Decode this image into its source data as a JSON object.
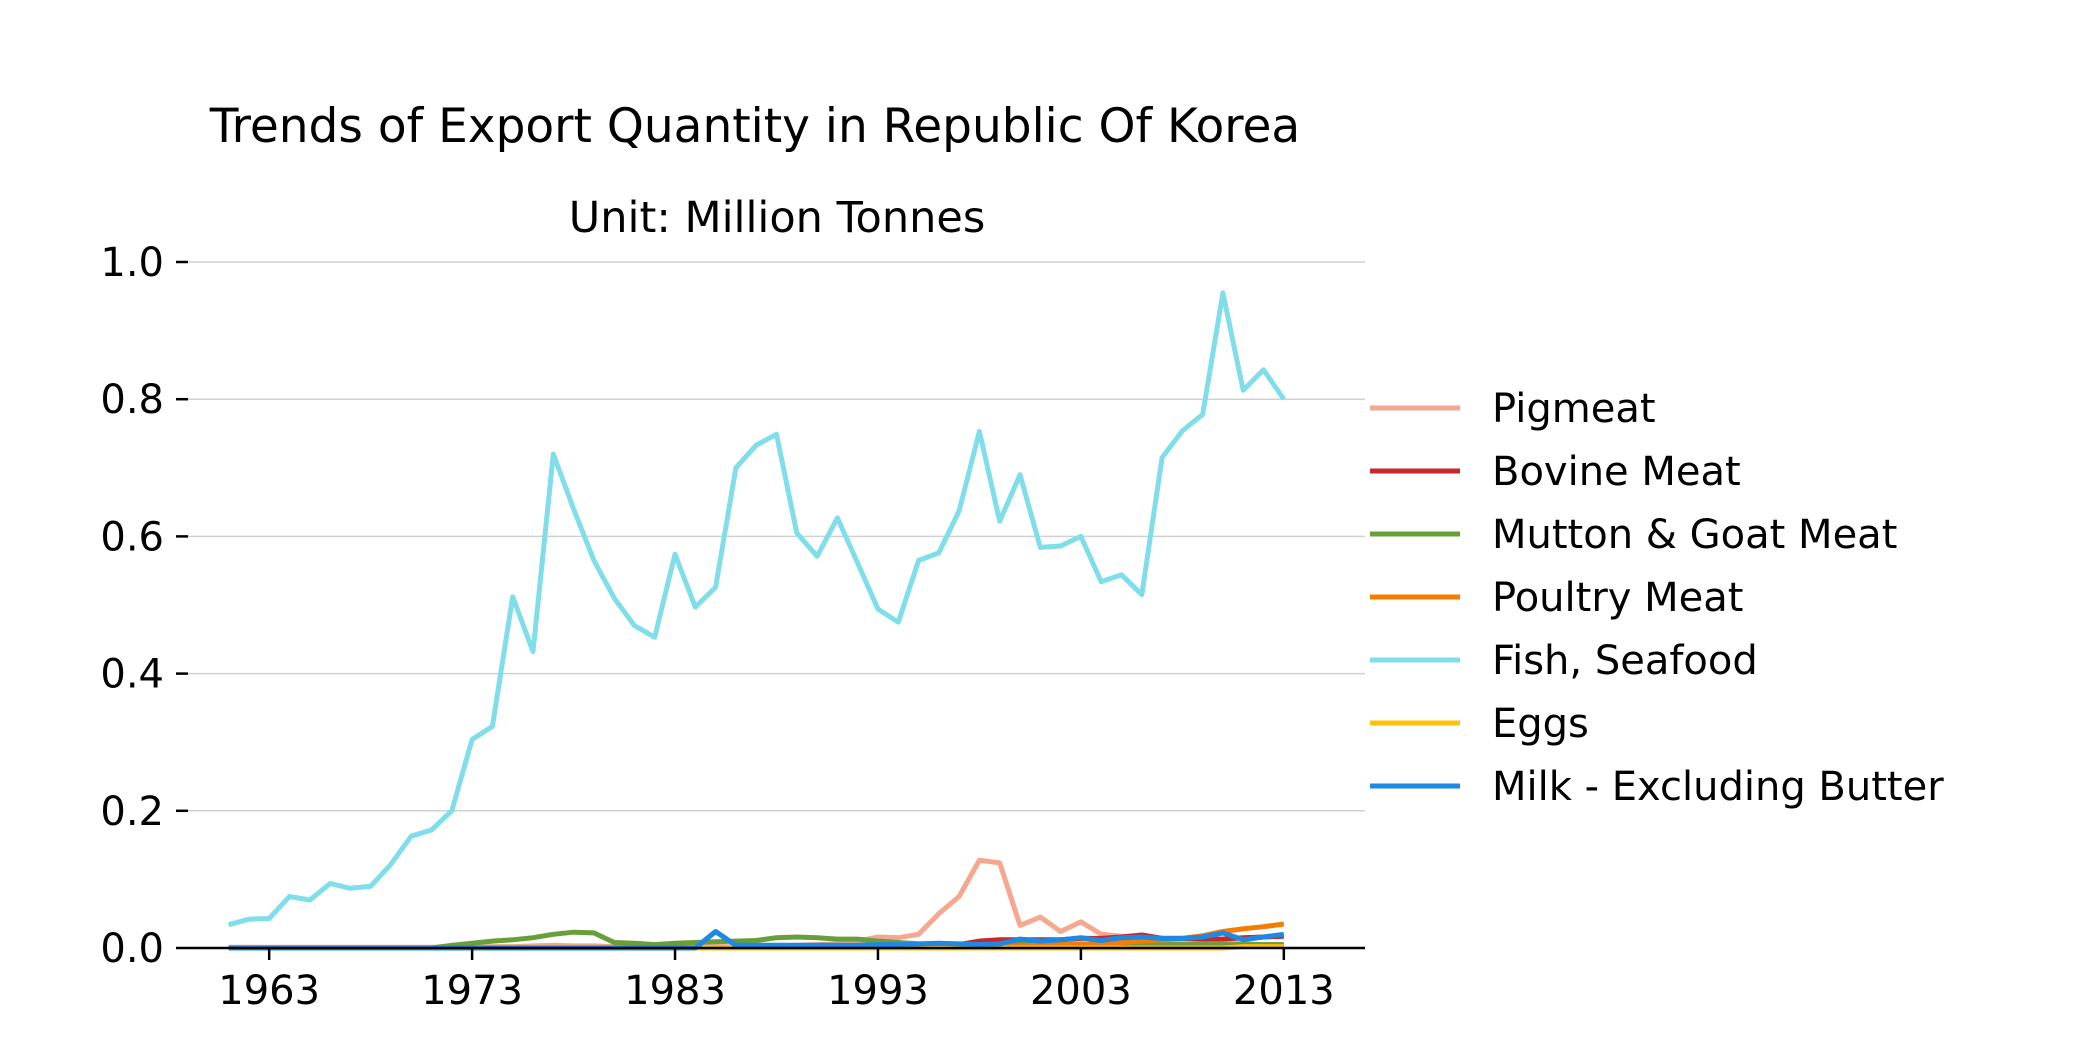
{
  "chart_data": {
    "type": "line",
    "title": "Trends of Export Quantity in Republic Of Korea",
    "subtitle": "Unit: Million Tonnes",
    "xlabel": "",
    "ylabel": "",
    "xlim": [
      1959,
      2017
    ],
    "ylim": [
      0,
      1.0
    ],
    "xticks": [
      1963,
      1973,
      1983,
      1993,
      2003,
      2013
    ],
    "yticks": [
      0.0,
      0.2,
      0.4,
      0.6,
      0.8,
      1.0
    ],
    "ytick_labels": [
      "0.0",
      "0.2",
      "0.4",
      "0.6",
      "0.8",
      "1.0"
    ],
    "grid": "horizontal",
    "legend_position": "right",
    "x": [
      1961,
      1962,
      1963,
      1964,
      1965,
      1966,
      1967,
      1968,
      1969,
      1970,
      1971,
      1972,
      1973,
      1974,
      1975,
      1976,
      1977,
      1978,
      1979,
      1980,
      1981,
      1982,
      1983,
      1984,
      1985,
      1986,
      1987,
      1988,
      1989,
      1990,
      1991,
      1992,
      1993,
      1994,
      1995,
      1996,
      1997,
      1998,
      1999,
      2000,
      2001,
      2002,
      2003,
      2004,
      2005,
      2006,
      2007,
      2008,
      2009,
      2010,
      2011,
      2012,
      2013
    ],
    "series": [
      {
        "name": "Pigmeat",
        "color": "#f7a68f",
        "values": [
          0.001,
          0.001,
          0.001,
          0.001,
          0.001,
          0.001,
          0.001,
          0.001,
          0.001,
          0.001,
          0.001,
          0.001,
          0.001,
          0.002,
          0.002,
          0.003,
          0.004,
          0.003,
          0.003,
          0.002,
          0.002,
          0.002,
          0.002,
          0.002,
          0.002,
          0.002,
          0.003,
          0.003,
          0.004,
          0.005,
          0.006,
          0.01,
          0.016,
          0.015,
          0.02,
          0.05,
          0.075,
          0.128,
          0.124,
          0.033,
          0.045,
          0.024,
          0.038,
          0.02,
          0.017,
          0.015,
          0.012,
          0.01,
          0.01,
          0.008,
          0.006,
          0.005,
          0.005
        ]
      },
      {
        "name": "Bovine Meat",
        "color": "#c62828",
        "values": [
          0,
          0,
          0,
          0,
          0,
          0,
          0,
          0,
          0,
          0,
          0,
          0,
          0,
          0,
          0,
          0,
          0,
          0,
          0,
          0,
          0,
          0,
          0,
          0,
          0,
          0,
          0,
          0,
          0,
          0,
          0,
          0,
          0,
          0,
          0,
          0.005,
          0.005,
          0.01,
          0.012,
          0.012,
          0.012,
          0.012,
          0.014,
          0.014,
          0.016,
          0.019,
          0.014,
          0.014,
          0.013,
          0.013,
          0.015,
          0.016,
          0.017
        ]
      },
      {
        "name": "Mutton & Goat Meat",
        "color": "#689f38",
        "values": [
          0,
          0,
          0,
          0,
          0,
          0,
          0,
          0,
          0,
          0,
          0,
          0.004,
          0.007,
          0.01,
          0.012,
          0.015,
          0.02,
          0.023,
          0.022,
          0.008,
          0.007,
          0.005,
          0.007,
          0.008,
          0.009,
          0.01,
          0.011,
          0.015,
          0.016,
          0.015,
          0.013,
          0.013,
          0.01,
          0.008,
          0.006,
          0.005,
          0.005,
          0.005,
          0.005,
          0.005,
          0.005,
          0.005,
          0.005,
          0.005,
          0.005,
          0.005,
          0.005,
          0.005,
          0.005,
          0.005,
          0.005,
          0.005,
          0.005
        ]
      },
      {
        "name": "Poultry Meat",
        "color": "#f57c00",
        "values": [
          0,
          0,
          0,
          0,
          0,
          0,
          0,
          0,
          0,
          0,
          0,
          0,
          0,
          0,
          0,
          0,
          0,
          0,
          0,
          0,
          0,
          0,
          0,
          0,
          0,
          0,
          0,
          0,
          0,
          0,
          0,
          0,
          0,
          0,
          0,
          0,
          0,
          0,
          0.002,
          0.003,
          0.004,
          0.005,
          0.006,
          0.006,
          0.008,
          0.01,
          0.012,
          0.014,
          0.018,
          0.024,
          0.028,
          0.031,
          0.035
        ]
      },
      {
        "name": "Fish, Seafood",
        "color": "#80deea",
        "values": [
          0.034,
          0.042,
          0.043,
          0.075,
          0.07,
          0.094,
          0.087,
          0.09,
          0.122,
          0.163,
          0.172,
          0.2,
          0.304,
          0.323,
          0.512,
          0.432,
          0.72,
          0.64,
          0.565,
          0.51,
          0.47,
          0.453,
          0.574,
          0.497,
          0.526,
          0.7,
          0.733,
          0.749,
          0.605,
          0.571,
          0.627,
          0.561,
          0.494,
          0.475,
          0.565,
          0.576,
          0.637,
          0.753,
          0.622,
          0.69,
          0.584,
          0.586,
          0.6,
          0.534,
          0.544,
          0.515,
          0.715,
          0.754,
          0.778,
          0.955,
          0.813,
          0.843,
          0.8
        ]
      },
      {
        "name": "Eggs",
        "color": "#ffc107",
        "values": [
          0,
          0,
          0,
          0,
          0,
          0,
          0,
          0,
          0,
          0,
          0,
          0,
          0,
          0,
          0,
          0,
          0,
          0,
          0,
          0,
          0,
          0,
          0,
          0,
          0,
          0,
          0,
          0,
          0,
          0,
          0,
          0,
          0,
          0,
          0,
          0,
          0,
          0,
          0,
          0,
          0,
          0,
          0,
          0,
          0,
          0,
          0,
          0,
          0,
          0,
          0.002,
          0.002,
          0.002
        ]
      },
      {
        "name": "Milk - Excluding Butter",
        "color": "#1e88e5",
        "values": [
          0,
          0,
          0,
          0,
          0,
          0,
          0,
          0,
          0,
          0,
          0,
          0,
          0,
          0,
          0,
          0,
          0,
          0,
          0,
          0,
          0,
          0,
          0,
          0,
          0.024,
          0.004,
          0.004,
          0.004,
          0.004,
          0.004,
          0.004,
          0.004,
          0.005,
          0.005,
          0.006,
          0.007,
          0.006,
          0.005,
          0.006,
          0.013,
          0.01,
          0.012,
          0.015,
          0.011,
          0.015,
          0.016,
          0.014,
          0.014,
          0.016,
          0.022,
          0.012,
          0.016,
          0.02
        ]
      }
    ]
  }
}
